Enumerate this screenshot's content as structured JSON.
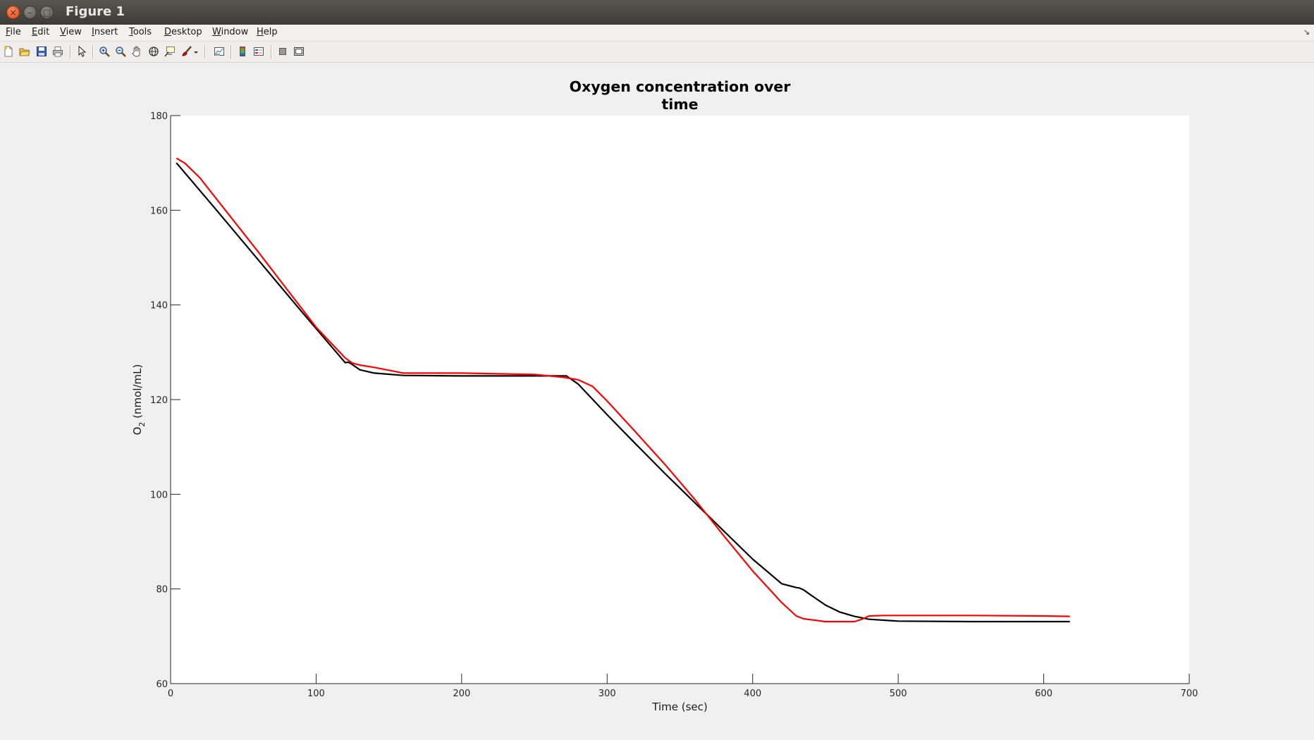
{
  "window": {
    "title": "Figure 1"
  },
  "menu": {
    "items": [
      {
        "label": "File",
        "mnemonic": "F",
        "rest": "ile"
      },
      {
        "label": "Edit",
        "mnemonic": "E",
        "rest": "dit"
      },
      {
        "label": "View",
        "mnemonic": "V",
        "rest": "iew"
      },
      {
        "label": "Insert",
        "mnemonic": "I",
        "rest": "nsert"
      },
      {
        "label": "Tools",
        "mnemonic": "T",
        "rest": "ools"
      },
      {
        "label": "Desktop",
        "mnemonic": "D",
        "rest": "esktop"
      },
      {
        "label": "Window",
        "mnemonic": "W",
        "rest": "indow"
      },
      {
        "label": "Help",
        "mnemonic": "H",
        "rest": "elp"
      }
    ],
    "overflow_icon": "arrow-icon"
  },
  "toolbar": {
    "buttons": [
      "new-figure-icon",
      "open-file-icon",
      "save-icon",
      "print-icon",
      "edit-plot-icon",
      "zoom-in-icon",
      "zoom-out-icon",
      "pan-icon",
      "rotate-3d-icon",
      "data-cursor-icon",
      "brush-icon",
      "brush-dropdown-icon",
      "link-plot-icon",
      "insert-colorbar-icon",
      "insert-legend-icon",
      "hide-plot-tools-icon",
      "show-plot-tools-icon"
    ]
  },
  "chart_data": {
    "type": "line",
    "title": "Oxygen concentration over\ntime",
    "title_lines": [
      "Oxygen concentration over",
      "time"
    ],
    "xlabel": "Time (sec)",
    "ylabel_base": "O",
    "ylabel_sub": "2",
    "ylabel_rest": " (nmol/mL)",
    "xlim": [
      0,
      700
    ],
    "ylim": [
      60,
      180
    ],
    "xticks": [
      0,
      100,
      200,
      300,
      400,
      500,
      600,
      700
    ],
    "yticks": [
      60,
      80,
      100,
      120,
      140,
      160,
      180
    ],
    "grid": false,
    "series": [
      {
        "color": "#000000",
        "x": [
          4,
          30,
          60,
          90,
          120,
          122,
          124,
          130,
          140,
          160,
          200,
          250,
          272,
          280,
          300,
          320,
          340,
          360,
          380,
          400,
          420,
          430,
          432,
          435,
          440,
          450,
          460,
          470,
          480,
          500,
          550,
          600,
          618
        ],
        "y": [
          170,
          160.6,
          149.6,
          138.6,
          127.8,
          127.9,
          127.6,
          126.3,
          125.6,
          125.1,
          125,
          125,
          125,
          123.3,
          116.8,
          110.5,
          104.3,
          98.3,
          92.3,
          86.3,
          81.1,
          80.3,
          80.2,
          79.8,
          78.7,
          76.6,
          75.1,
          74.2,
          73.6,
          73.2,
          73.1,
          73.1,
          73.1
        ]
      },
      {
        "color": "#ff0000",
        "x": [
          4,
          10,
          20,
          40,
          60,
          80,
          100,
          120,
          125,
          130,
          140,
          160,
          200,
          250,
          270,
          280,
          290,
          300,
          320,
          340,
          360,
          380,
          400,
          420,
          430,
          435,
          440,
          450,
          460,
          470,
          475,
          480,
          490,
          500,
          550,
          600,
          618
        ],
        "y": [
          171,
          169.9,
          166.9,
          159.1,
          151.3,
          143.3,
          135.3,
          128.8,
          127.7,
          127.3,
          126.8,
          125.6,
          125.6,
          125.3,
          124.7,
          124.2,
          122.8,
          119.7,
          113,
          106.2,
          99,
          91.3,
          83.8,
          77.1,
          74.3,
          73.7,
          73.5,
          73.1,
          73.1,
          73.1,
          73.6,
          74.3,
          74.4,
          74.4,
          74.4,
          74.3,
          74.2
        ]
      }
    ]
  }
}
